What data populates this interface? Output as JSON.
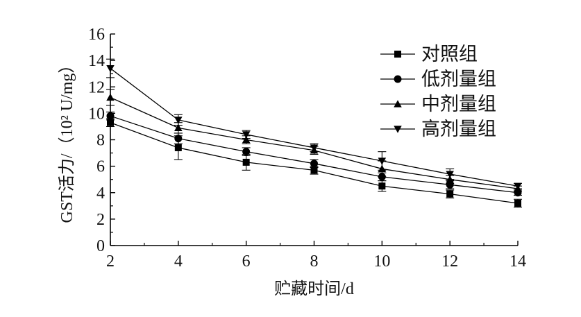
{
  "chart_data": {
    "type": "line",
    "xlabel": "贮藏时间/d",
    "ylabel": "GST活力/（10² U/mg）",
    "x": [
      2,
      4,
      6,
      8,
      10,
      12,
      14
    ],
    "xlim": [
      2,
      14
    ],
    "ylim": [
      0,
      16
    ],
    "x_ticks": [
      "2",
      "4",
      "6",
      "8",
      "10",
      "12",
      "14"
    ],
    "y_ticks": [
      "0",
      "2",
      "4",
      "6",
      "8",
      "10",
      "12",
      "14",
      "16"
    ],
    "grid": false,
    "legend_position": "top-right",
    "series": [
      {
        "name": "对照组",
        "marker": "square",
        "values": [
          9.3,
          7.4,
          6.3,
          5.7,
          4.5,
          3.9,
          3.2
        ],
        "errors": [
          0.3,
          0.9,
          0.6,
          0.3,
          0.4,
          0.3,
          0.3
        ]
      },
      {
        "name": "低剂量组",
        "marker": "circle",
        "values": [
          9.8,
          8.1,
          7.1,
          6.2,
          5.2,
          4.6,
          4.0
        ],
        "errors": [
          0.3,
          0.4,
          0.3,
          0.3,
          0.3,
          0.3,
          0.2
        ]
      },
      {
        "name": "中剂量组",
        "marker": "triangle-up",
        "values": [
          11.2,
          8.9,
          8.0,
          7.2,
          5.8,
          5.0,
          4.3
        ],
        "errors": [
          0.6,
          0.4,
          0.3,
          0.3,
          0.6,
          0.3,
          0.2
        ]
      },
      {
        "name": "高剂量组",
        "marker": "triangle-down",
        "values": [
          13.4,
          9.5,
          8.4,
          7.4,
          6.4,
          5.4,
          4.5
        ],
        "errors": [
          0.7,
          0.4,
          0.3,
          0.3,
          0.7,
          0.4,
          0.2
        ]
      }
    ]
  }
}
